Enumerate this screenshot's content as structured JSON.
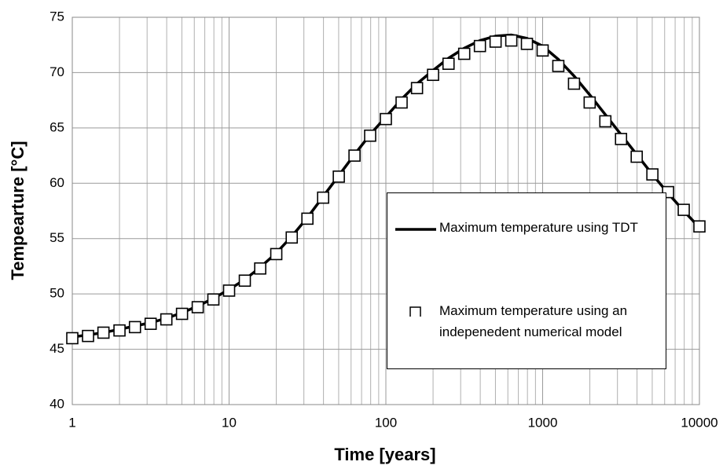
{
  "chart_data": {
    "type": "line",
    "xlabel": "Time [years]",
    "ylabel": "Tempearture [°C]",
    "xscale": "log",
    "xlim": [
      1,
      10000
    ],
    "xticks": [
      1,
      10,
      100,
      1000,
      10000
    ],
    "ylim": [
      40,
      75
    ],
    "yticks": [
      40,
      45,
      50,
      55,
      60,
      65,
      70,
      75
    ],
    "grid": true,
    "legend": "right",
    "x": [
      1,
      1.26,
      1.58,
      2,
      2.51,
      3.16,
      3.98,
      5.01,
      6.31,
      7.94,
      10,
      12.6,
      15.8,
      20,
      25.1,
      31.6,
      39.8,
      50.1,
      63.1,
      79.4,
      100,
      126,
      158,
      200,
      251,
      316,
      398,
      501,
      631,
      794,
      1000,
      1259,
      1585,
      1995,
      2512,
      3162,
      3981,
      5012,
      6310,
      7943,
      10000
    ],
    "series": [
      {
        "name": "Maximum temperature using TDT",
        "color": "#000000",
        "marker": "line",
        "values": [
          46.1,
          46.3,
          46.5,
          46.8,
          47.1,
          47.4,
          47.8,
          48.3,
          48.9,
          49.6,
          50.4,
          51.3,
          52.4,
          53.7,
          55.2,
          56.9,
          58.8,
          60.7,
          62.6,
          64.4,
          66.0,
          67.6,
          69.0,
          70.2,
          71.3,
          72.2,
          72.9,
          73.3,
          73.4,
          73.1,
          72.4,
          71.2,
          69.7,
          68.0,
          66.2,
          64.4,
          62.6,
          60.8,
          59.1,
          57.5,
          56.0
        ]
      },
      {
        "name": "Maximum temperature using an indepenedent numerical model",
        "color": "#000000",
        "marker": "square",
        "values": [
          46.0,
          46.2,
          46.5,
          46.7,
          47.0,
          47.3,
          47.7,
          48.2,
          48.8,
          49.5,
          50.3,
          51.2,
          52.3,
          53.6,
          55.1,
          56.8,
          58.7,
          60.6,
          62.5,
          64.3,
          65.8,
          67.3,
          68.6,
          69.8,
          70.8,
          71.7,
          72.4,
          72.8,
          72.9,
          72.6,
          72.0,
          70.6,
          69.0,
          67.3,
          65.6,
          64.0,
          62.4,
          60.8,
          59.2,
          57.6,
          56.1
        ]
      }
    ]
  }
}
